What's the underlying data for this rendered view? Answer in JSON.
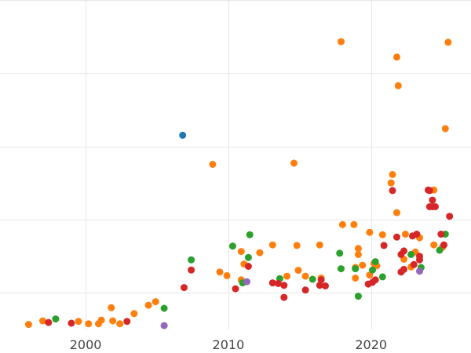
{
  "chart_data": {
    "type": "scatter",
    "title": "",
    "xlabel": "",
    "ylabel": "",
    "xlim": [
      1994,
      2027
    ],
    "ylim": [
      0,
      450
    ],
    "x_ticks": [
      2000,
      2010,
      2020
    ],
    "x_tick_labels": [
      "2000",
      "2010",
      "2020"
    ],
    "y_gridlines": [
      50,
      150,
      250,
      350,
      450
    ],
    "grid": true,
    "legend": "none",
    "colors": {
      "blue": "#1f77b4",
      "orange": "#ff7f0e",
      "green": "#2ca02c",
      "red": "#d62728",
      "purple": "#9467bd"
    },
    "series": [
      {
        "color_key": "blue",
        "points": [
          [
            2006.8,
            265.3
          ]
        ]
      },
      {
        "color_key": "orange",
        "points": [
          [
            1996.0,
            6.9
          ],
          [
            1997.0,
            11.8
          ],
          [
            1999.5,
            11.0
          ],
          [
            2000.2,
            7.8
          ],
          [
            2000.9,
            7.8
          ],
          [
            2001.1,
            12.7
          ],
          [
            2001.8,
            29.8
          ],
          [
            2001.9,
            11.8
          ],
          [
            2002.4,
            7.8
          ],
          [
            2003.4,
            21.6
          ],
          [
            2004.4,
            33.1
          ],
          [
            2004.9,
            37.9
          ],
          [
            2008.9,
            225.5
          ],
          [
            2009.4,
            78.4
          ],
          [
            2009.9,
            73.5
          ],
          [
            2010.9,
            67.7
          ],
          [
            2010.9,
            106.5
          ],
          [
            2011.1,
            89.4
          ],
          [
            2012.2,
            104.9
          ],
          [
            2013.1,
            115.5
          ],
          [
            2014.1,
            72.7
          ],
          [
            2014.6,
            227.1
          ],
          [
            2014.8,
            114.7
          ],
          [
            2014.9,
            80.8
          ],
          [
            2015.4,
            72.7
          ],
          [
            2016.4,
            115.5
          ],
          [
            2016.5,
            70.2
          ],
          [
            2017.9,
            393.1
          ],
          [
            2018.0,
            143.2
          ],
          [
            2018.8,
            143.2
          ],
          [
            2018.9,
            70.2
          ],
          [
            2018.9,
            84.6
          ],
          [
            2019.1,
            110.6
          ],
          [
            2019.1,
            102.4
          ],
          [
            2019.4,
            87.8
          ],
          [
            2019.9,
            74.4
          ],
          [
            2019.9,
            132.6
          ],
          [
            2020.2,
            90.2
          ],
          [
            2020.4,
            87.0
          ],
          [
            2020.8,
            129.4
          ],
          [
            2021.4,
            200.2
          ],
          [
            2021.5,
            211.6
          ],
          [
            2021.8,
            159.5
          ],
          [
            2021.8,
            372.0
          ],
          [
            2021.9,
            332.9
          ],
          [
            2022.3,
            95.9
          ],
          [
            2022.4,
            130.2
          ],
          [
            2022.8,
            85.4
          ],
          [
            2023.1,
            105.7
          ],
          [
            2023.4,
            125.3
          ],
          [
            2024.4,
            190.5
          ],
          [
            2024.4,
            115.5
          ],
          [
            2025.0,
            112.2
          ],
          [
            2025.2,
            274.3
          ],
          [
            2025.4,
            392.3
          ]
        ]
      },
      {
        "color_key": "green",
        "points": [
          [
            1997.9,
            14.4
          ],
          [
            2005.5,
            28.9
          ],
          [
            2007.4,
            95.1
          ],
          [
            2010.3,
            113.9
          ],
          [
            2011.0,
            63.6
          ],
          [
            2011.4,
            98.4
          ],
          [
            2011.5,
            129.4
          ],
          [
            2013.6,
            69.4
          ],
          [
            2015.9,
            68.6
          ],
          [
            2017.8,
            104.1
          ],
          [
            2017.9,
            82.9
          ],
          [
            2018.9,
            82.9
          ],
          [
            2019.1,
            45.4
          ],
          [
            2020.1,
            81.2
          ],
          [
            2020.3,
            92.6
          ],
          [
            2020.8,
            71.9
          ],
          [
            2022.8,
            102.4
          ],
          [
            2023.5,
            84.6
          ],
          [
            2024.8,
            108.2
          ],
          [
            2025.2,
            130.2
          ]
        ]
      },
      {
        "color_key": "red",
        "points": [
          [
            1997.4,
            9.5
          ],
          [
            1999.0,
            8.6
          ],
          [
            2002.9,
            11.0
          ],
          [
            2006.9,
            57.2
          ],
          [
            2007.4,
            81.2
          ],
          [
            2010.5,
            55.6
          ],
          [
            2011.4,
            86.2
          ],
          [
            2013.1,
            63.6
          ],
          [
            2013.5,
            62.8
          ],
          [
            2013.9,
            60.3
          ],
          [
            2013.9,
            43.8
          ],
          [
            2015.4,
            53.9
          ],
          [
            2016.4,
            60.3
          ],
          [
            2016.5,
            67.7
          ],
          [
            2016.8,
            59.5
          ],
          [
            2019.8,
            62.0
          ],
          [
            2020.1,
            64.4
          ],
          [
            2020.3,
            67.7
          ],
          [
            2020.9,
            114.7
          ],
          [
            2021.5,
            189.7
          ],
          [
            2021.8,
            126.2
          ],
          [
            2022.1,
            78.4
          ],
          [
            2022.1,
            102.4
          ],
          [
            2022.3,
            82.1
          ],
          [
            2022.3,
            107.3
          ],
          [
            2022.9,
            127.7
          ],
          [
            2023.0,
            88.6
          ],
          [
            2023.2,
            130.2
          ],
          [
            2023.4,
            95.1
          ],
          [
            2023.4,
            100.0
          ],
          [
            2024.0,
            190.5
          ],
          [
            2024.1,
            189.7
          ],
          [
            2024.1,
            167.7
          ],
          [
            2024.3,
            176.7
          ],
          [
            2024.3,
            167.7
          ],
          [
            2024.5,
            167.7
          ],
          [
            2024.9,
            130.2
          ],
          [
            2025.1,
            115.5
          ],
          [
            2025.5,
            154.6
          ]
        ]
      },
      {
        "color_key": "purple",
        "points": [
          [
            2005.5,
            5.3
          ],
          [
            2011.3,
            65.2
          ],
          [
            2023.4,
            79.6
          ]
        ]
      }
    ]
  }
}
